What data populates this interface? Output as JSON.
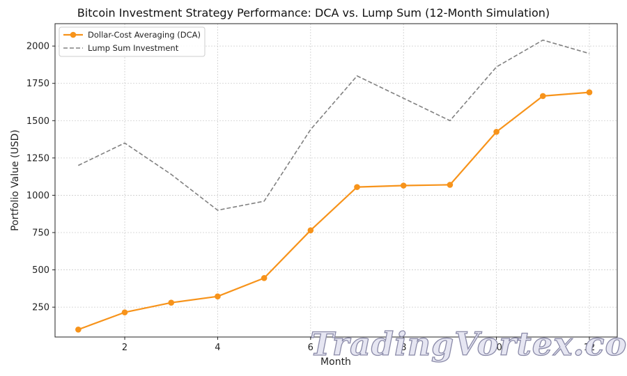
{
  "chart_data": {
    "type": "line",
    "title": "Bitcoin Investment Strategy Performance: DCA vs. Lump Sum (12-Month Simulation)",
    "xlabel": "Month",
    "ylabel": "Portfolio Value (USD)",
    "x": [
      1,
      2,
      3,
      4,
      5,
      6,
      7,
      8,
      9,
      10,
      11,
      12
    ],
    "xlim": [
      0.5,
      12.6
    ],
    "ylim": [
      50,
      2150
    ],
    "xticks": [
      2,
      4,
      6,
      8,
      10,
      12
    ],
    "yticks": [
      250,
      500,
      750,
      1000,
      1250,
      1500,
      1750,
      2000
    ],
    "grid": true,
    "legend_position": "top-left",
    "series": [
      {
        "name": "Dollar-Cost Averaging (DCA)",
        "values": [
          100,
          215,
          280,
          322,
          445,
          765,
          1055,
          1065,
          1070,
          1425,
          1665,
          1690
        ],
        "color": "#f7931a",
        "style": "solid",
        "marker": "circle"
      },
      {
        "name": "Lump Sum Investment",
        "values": [
          1200,
          1350,
          1140,
          900,
          960,
          1440,
          1800,
          1650,
          1500,
          1860,
          2040,
          1950
        ],
        "color": "#808080",
        "style": "dashed",
        "marker": "none"
      }
    ]
  },
  "watermark": "TradingVortex.com"
}
